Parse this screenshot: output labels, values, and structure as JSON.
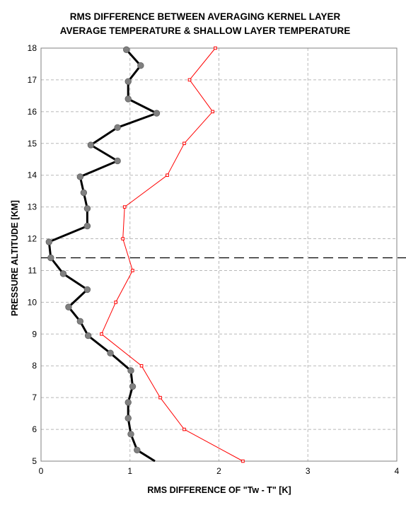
{
  "chart_data": {
    "type": "line",
    "title": "RMS DIFFERENCE BETWEEN AVERAGING KERNEL LAYER",
    "subtitle": "AVERAGE TEMPERATURE & SHALLOW LAYER TEMPERATURE",
    "xlabel": "RMS DIFFERENCE OF \"Tw - T\" [K]",
    "ylabel": "PRESSURE ALTITUDE [KM]",
    "xlim": [
      0,
      4
    ],
    "ylim": [
      5,
      18
    ],
    "xticks": [
      "0",
      "1",
      "2",
      "3",
      "4"
    ],
    "yticks": [
      "5",
      "6",
      "7",
      "8",
      "9",
      "10",
      "11",
      "12",
      "13",
      "14",
      "15",
      "16",
      "17",
      "18"
    ],
    "grid": true,
    "reference_line_y": 11.4,
    "series": [
      {
        "color": "#000000",
        "marker_color": "#808080",
        "x": [
          1.28,
          1.08,
          1.01,
          0.98,
          0.98,
          1.03,
          1.01,
          0.78,
          0.53,
          0.44,
          0.31,
          0.52,
          0.25,
          0.11,
          0.09,
          0.52,
          0.52,
          0.48,
          0.44,
          0.86,
          0.56,
          0.86,
          1.3,
          0.98,
          0.98,
          1.12,
          0.96
        ],
        "y": [
          5.0,
          5.35,
          5.85,
          6.35,
          6.85,
          7.35,
          7.85,
          8.4,
          8.95,
          9.4,
          9.85,
          10.4,
          10.9,
          11.4,
          11.9,
          12.4,
          12.95,
          13.45,
          13.95,
          14.45,
          14.95,
          15.5,
          15.95,
          16.4,
          16.95,
          17.45,
          17.95
        ]
      },
      {
        "color": "#ff0000",
        "marker_color": "#ff0000",
        "x": [
          2.27,
          1.61,
          1.34,
          1.13,
          0.68,
          0.84,
          1.03,
          0.92,
          0.94,
          1.42,
          1.61,
          1.93,
          1.67,
          1.96
        ],
        "y": [
          5.0,
          6.0,
          7.0,
          8.0,
          9.0,
          10.0,
          11.0,
          12.0,
          13.0,
          14.0,
          15.0,
          16.0,
          17.0,
          18.0
        ]
      }
    ]
  }
}
